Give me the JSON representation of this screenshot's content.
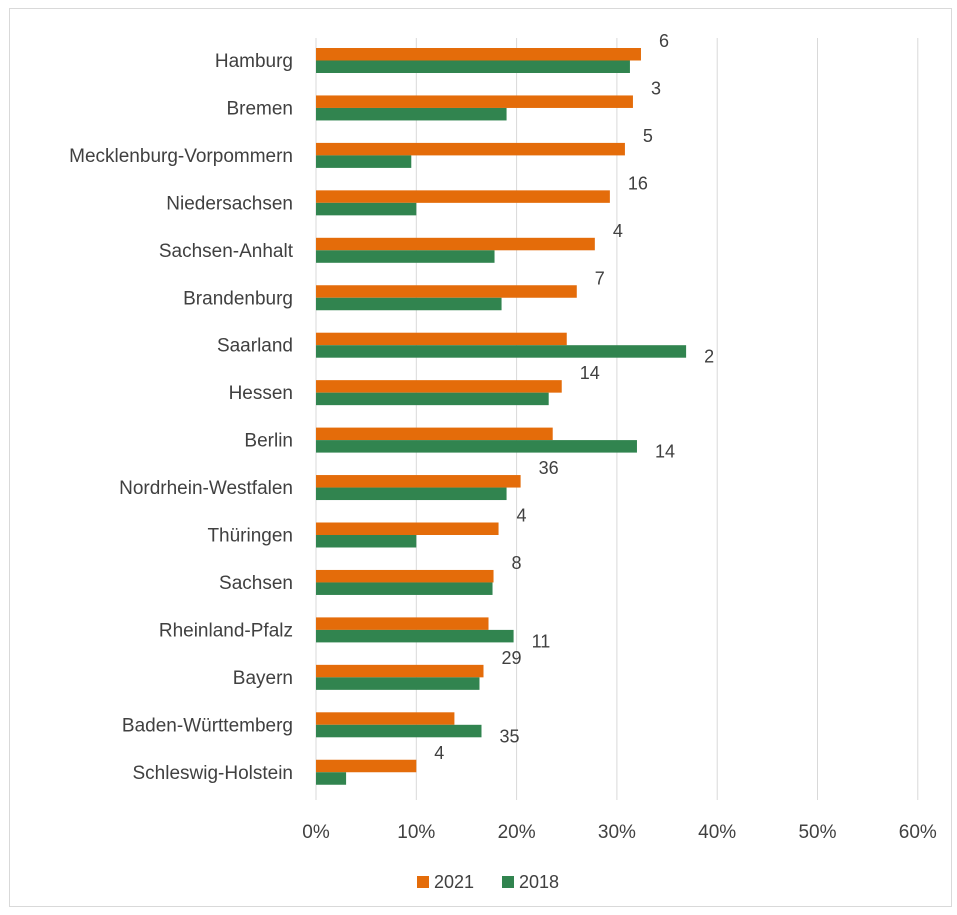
{
  "chart_data": {
    "type": "bar",
    "orientation": "horizontal",
    "title": "",
    "xlabel": "",
    "ylabel": "",
    "xlim": [
      0,
      0.6
    ],
    "x_ticks": [
      0,
      0.1,
      0.2,
      0.3,
      0.4,
      0.5,
      0.6
    ],
    "x_tick_labels": [
      "0%",
      "10%",
      "20%",
      "30%",
      "40%",
      "50%",
      "60%"
    ],
    "grid": "vertical",
    "legend_position": "bottom",
    "categories": [
      "Hamburg",
      "Bremen",
      "Mecklenburg-Vorpommern",
      "Niedersachsen",
      "Sachsen-Anhalt",
      "Brandenburg",
      "Saarland",
      "Hessen",
      "Berlin",
      "Nordrhein-Westfalen",
      "Thüringen",
      "Sachsen",
      "Rheinland-Pfalz",
      "Bayern",
      "Baden-Württemberg",
      "Schleswig-Holstein"
    ],
    "series": [
      {
        "name": "2021",
        "color": "#e46c0a",
        "values": [
          0.324,
          0.316,
          0.308,
          0.293,
          0.278,
          0.26,
          0.25,
          0.245,
          0.236,
          0.204,
          0.182,
          0.177,
          0.172,
          0.167,
          0.138,
          0.1
        ]
      },
      {
        "name": "2018",
        "color": "#31844f",
        "values": [
          0.313,
          0.19,
          0.095,
          0.1,
          0.178,
          0.185,
          0.369,
          0.232,
          0.32,
          0.19,
          0.1,
          0.176,
          0.197,
          0.163,
          0.165,
          0.03
        ]
      }
    ],
    "data_labels": [
      "6",
      "3",
      "5",
      "16",
      "4",
      "7",
      "2",
      "14",
      "14",
      "36",
      "4",
      "8",
      "11",
      "29",
      "35",
      "4"
    ]
  }
}
